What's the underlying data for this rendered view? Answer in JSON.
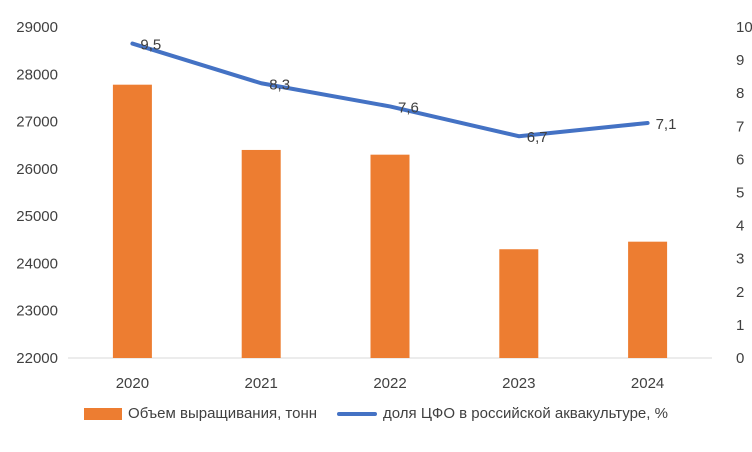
{
  "chart_data": {
    "type": "bar+line",
    "categories": [
      "2020",
      "2021",
      "2022",
      "2023",
      "2024"
    ],
    "series": [
      {
        "name": "Объем выращивания, тонн",
        "type": "bar",
        "axis": "left",
        "color": "#ED7D31",
        "values": [
          27780,
          26400,
          26300,
          24300,
          24460
        ]
      },
      {
        "name": "доля ЦФО в российской аквакультуре, %",
        "type": "line",
        "axis": "right",
        "color": "#4472C4",
        "values": [
          9.5,
          8.3,
          7.6,
          6.7,
          7.1
        ],
        "labels": [
          "9,5",
          "8,3",
          "7,6",
          "6,7",
          "7,1"
        ]
      }
    ],
    "y_left": {
      "min": 22000,
      "max": 29000,
      "ticks": [
        "22000",
        "23000",
        "24000",
        "25000",
        "26000",
        "27000",
        "28000",
        "29000"
      ]
    },
    "y_right": {
      "min": 0,
      "max": 10,
      "ticks": [
        "0",
        "1",
        "2",
        "3",
        "4",
        "5",
        "6",
        "7",
        "8",
        "9",
        "10"
      ]
    },
    "grid": false,
    "legend_position": "bottom"
  }
}
